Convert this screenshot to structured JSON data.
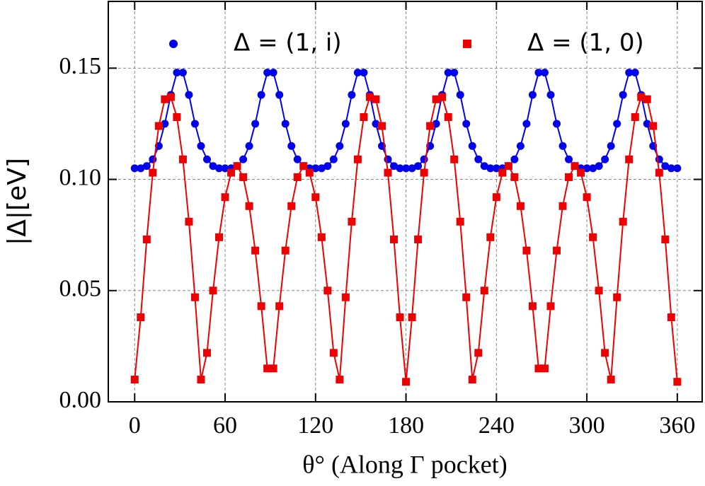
{
  "chart_data": {
    "type": "line",
    "xlabel": "θ° (Along Γ pocket)",
    "ylabel": "|Δ|[eV]",
    "x": [
      0,
      4,
      8,
      12,
      16,
      20,
      24,
      28,
      32,
      36,
      40,
      44,
      48,
      52,
      56,
      60,
      64,
      68,
      72,
      76,
      80,
      84,
      88,
      92,
      96,
      100,
      104,
      108,
      112,
      116,
      120,
      124,
      128,
      132,
      136,
      140,
      144,
      148,
      152,
      156,
      160,
      164,
      168,
      172,
      176,
      180,
      184,
      188,
      192,
      196,
      200,
      204,
      208,
      212,
      216,
      220,
      224,
      228,
      232,
      236,
      240,
      244,
      248,
      252,
      256,
      260,
      264,
      268,
      272,
      276,
      280,
      284,
      288,
      292,
      296,
      300,
      304,
      308,
      312,
      316,
      320,
      324,
      328,
      332,
      336,
      340,
      344,
      348,
      352,
      356,
      360
    ],
    "series": [
      {
        "name": "Δ = (1, i)",
        "color": "#0000ee",
        "marker": "circle",
        "values": [
          0.105,
          0.105,
          0.106,
          0.109,
          0.115,
          0.125,
          0.138,
          0.148,
          0.148,
          0.138,
          0.125,
          0.115,
          0.109,
          0.106,
          0.105,
          0.105,
          0.105,
          0.106,
          0.109,
          0.115,
          0.125,
          0.138,
          0.148,
          0.148,
          0.138,
          0.125,
          0.115,
          0.109,
          0.106,
          0.105,
          0.105,
          0.105,
          0.106,
          0.109,
          0.115,
          0.125,
          0.138,
          0.148,
          0.148,
          0.138,
          0.125,
          0.115,
          0.109,
          0.106,
          0.105,
          0.105,
          0.105,
          0.106,
          0.109,
          0.115,
          0.125,
          0.138,
          0.148,
          0.148,
          0.138,
          0.125,
          0.115,
          0.109,
          0.106,
          0.105,
          0.105,
          0.105,
          0.106,
          0.109,
          0.115,
          0.125,
          0.138,
          0.148,
          0.148,
          0.138,
          0.125,
          0.115,
          0.109,
          0.106,
          0.105,
          0.105,
          0.105,
          0.106,
          0.109,
          0.115,
          0.125,
          0.138,
          0.148,
          0.148,
          0.138,
          0.125,
          0.115,
          0.109,
          0.106,
          0.105,
          0.105
        ]
      },
      {
        "name": "Δ = (1, 0)",
        "color": "#ee0000",
        "marker": "square",
        "values": [
          0.01,
          0.038,
          0.073,
          0.103,
          0.124,
          0.136,
          0.137,
          0.128,
          0.109,
          0.081,
          0.047,
          0.01,
          0.022,
          0.05,
          0.074,
          0.092,
          0.103,
          0.106,
          0.101,
          0.088,
          0.068,
          0.043,
          0.015,
          0.015,
          0.043,
          0.068,
          0.088,
          0.101,
          0.106,
          0.103,
          0.092,
          0.074,
          0.05,
          0.022,
          0.01,
          0.047,
          0.081,
          0.109,
          0.128,
          0.137,
          0.136,
          0.124,
          0.103,
          0.073,
          0.038,
          0.009,
          0.038,
          0.073,
          0.103,
          0.124,
          0.136,
          0.137,
          0.128,
          0.109,
          0.081,
          0.047,
          0.01,
          0.022,
          0.05,
          0.074,
          0.092,
          0.103,
          0.106,
          0.101,
          0.088,
          0.068,
          0.043,
          0.015,
          0.015,
          0.043,
          0.068,
          0.088,
          0.101,
          0.106,
          0.103,
          0.092,
          0.074,
          0.05,
          0.022,
          0.01,
          0.047,
          0.081,
          0.109,
          0.128,
          0.137,
          0.136,
          0.124,
          0.103,
          0.073,
          0.038,
          0.009
        ]
      }
    ],
    "xlim": [
      -17.5,
      376.5
    ],
    "xticks": [
      0,
      60,
      120,
      180,
      240,
      300,
      360
    ],
    "ylim": [
      0,
      0.18
    ],
    "yticks": [
      {
        "value": 0,
        "label": "0.00"
      },
      {
        "value": 0.05,
        "label": "0.05"
      },
      {
        "value": 0.1,
        "label": "0.10"
      },
      {
        "value": 0.15,
        "label": "0.15"
      }
    ],
    "grid": true,
    "legend": "top"
  }
}
